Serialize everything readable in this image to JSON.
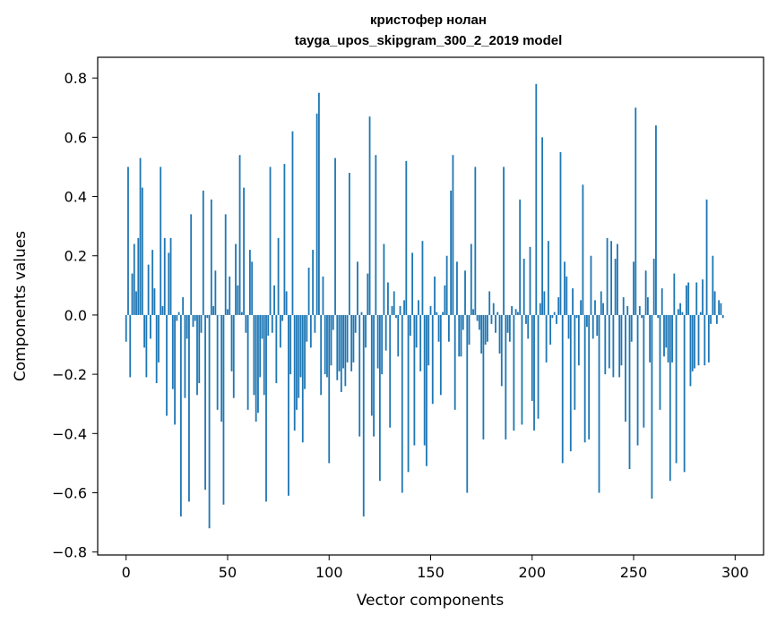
{
  "chart_data": {
    "type": "bar",
    "title": "кристофер нолан",
    "subtitle": "tayga_upos_skipgram_300_2_2019 model",
    "xlabel": "Vector components",
    "ylabel": "Components values",
    "xlim": [
      -14,
      314
    ],
    "ylim": [
      -0.81,
      0.87
    ],
    "xticks": [
      0,
      50,
      100,
      150,
      200,
      250,
      300
    ],
    "yticks": [
      -0.8,
      -0.6,
      -0.4,
      -0.2,
      0.0,
      0.2,
      0.4,
      0.6,
      0.8
    ],
    "ytick_labels": [
      "−0.8",
      "−0.6",
      "−0.4",
      "−0.2",
      "0.0",
      "0.2",
      "0.4",
      "0.6",
      "0.8"
    ],
    "bar_color": "#1f77b4",
    "grid": false,
    "legend": "none",
    "values": [
      -0.09,
      0.5,
      -0.21,
      0.14,
      0.24,
      0.08,
      0.26,
      0.53,
      0.43,
      -0.11,
      -0.21,
      0.17,
      -0.08,
      0.22,
      0.09,
      -0.23,
      -0.16,
      0.5,
      0.03,
      0.26,
      -0.34,
      0.21,
      0.26,
      -0.25,
      -0.37,
      -0.02,
      0.01,
      -0.68,
      0.06,
      -0.28,
      -0.08,
      -0.63,
      0.34,
      -0.04,
      -0.02,
      -0.27,
      -0.23,
      -0.06,
      0.42,
      -0.59,
      -0.01,
      -0.72,
      0.39,
      0.03,
      0.15,
      -0.32,
      0.0,
      -0.36,
      -0.64,
      0.34,
      0.02,
      0.13,
      -0.19,
      -0.28,
      0.24,
      0.1,
      0.54,
      0.01,
      0.43,
      -0.06,
      -0.32,
      0.22,
      0.18,
      -0.27,
      -0.36,
      -0.33,
      -0.21,
      -0.08,
      -0.27,
      -0.63,
      -0.07,
      0.5,
      -0.06,
      0.1,
      -0.23,
      0.26,
      -0.11,
      -0.02,
      0.51,
      0.08,
      -0.61,
      -0.2,
      0.62,
      -0.39,
      -0.32,
      -0.28,
      -0.21,
      -0.43,
      -0.25,
      -0.09,
      0.16,
      -0.11,
      0.22,
      -0.06,
      0.68,
      0.75,
      -0.27,
      0.13,
      -0.2,
      -0.21,
      -0.5,
      -0.17,
      -0.05,
      0.53,
      -0.22,
      -0.19,
      -0.26,
      -0.18,
      -0.24,
      -0.16,
      0.48,
      -0.19,
      -0.16,
      -0.06,
      0.18,
      -0.41,
      0.01,
      -0.68,
      -0.11,
      0.14,
      0.67,
      -0.34,
      -0.41,
      0.54,
      -0.18,
      -0.56,
      -0.2,
      0.24,
      -0.12,
      0.11,
      -0.38,
      0.03,
      0.08,
      -0.01,
      -0.14,
      0.03,
      -0.6,
      0.05,
      0.52,
      -0.53,
      -0.07,
      0.21,
      -0.44,
      -0.11,
      0.05,
      -0.19,
      0.25,
      -0.44,
      -0.51,
      -0.17,
      0.03,
      -0.3,
      0.13,
      0.01,
      -0.09,
      -0.27,
      0.01,
      0.1,
      0.2,
      -0.09,
      0.42,
      0.54,
      -0.32,
      0.18,
      -0.14,
      -0.14,
      -0.05,
      0.15,
      -0.6,
      -0.1,
      0.24,
      0.02,
      0.5,
      -0.02,
      -0.05,
      -0.13,
      -0.42,
      -0.1,
      -0.09,
      0.08,
      -0.03,
      0.04,
      -0.06,
      0.01,
      -0.13,
      -0.24,
      0.5,
      -0.42,
      -0.06,
      -0.09,
      0.03,
      -0.39,
      0.02,
      0.01,
      0.39,
      -0.37,
      0.19,
      -0.03,
      -0.08,
      0.23,
      -0.29,
      -0.39,
      0.78,
      -0.35,
      0.04,
      0.6,
      0.08,
      -0.16,
      0.25,
      -0.1,
      -0.01,
      0.01,
      -0.03,
      0.06,
      0.55,
      -0.5,
      0.18,
      0.13,
      -0.08,
      -0.46,
      0.09,
      -0.32,
      -0.01,
      -0.17,
      0.05,
      0.44,
      -0.43,
      -0.04,
      -0.42,
      0.2,
      -0.08,
      0.05,
      -0.07,
      -0.6,
      0.08,
      0.04,
      -0.2,
      0.26,
      -0.18,
      0.25,
      -0.21,
      0.19,
      0.24,
      -0.21,
      -0.17,
      0.06,
      -0.36,
      0.03,
      -0.52,
      -0.09,
      0.18,
      0.7,
      -0.44,
      0.03,
      -0.01,
      -0.38,
      0.15,
      0.06,
      -0.16,
      -0.62,
      0.19,
      0.64,
      -0.01,
      -0.32,
      0.09,
      -0.14,
      -0.11,
      -0.16,
      -0.56,
      -0.16,
      0.14,
      -0.5,
      0.02,
      0.04,
      0.01,
      -0.53,
      0.1,
      0.11,
      -0.24,
      -0.19,
      -0.18,
      0.11,
      -0.17,
      0.01,
      0.12,
      -0.17,
      0.39,
      -0.16,
      -0.03,
      0.2,
      0.08,
      -0.03,
      0.05,
      0.04,
      -0.01
    ]
  }
}
